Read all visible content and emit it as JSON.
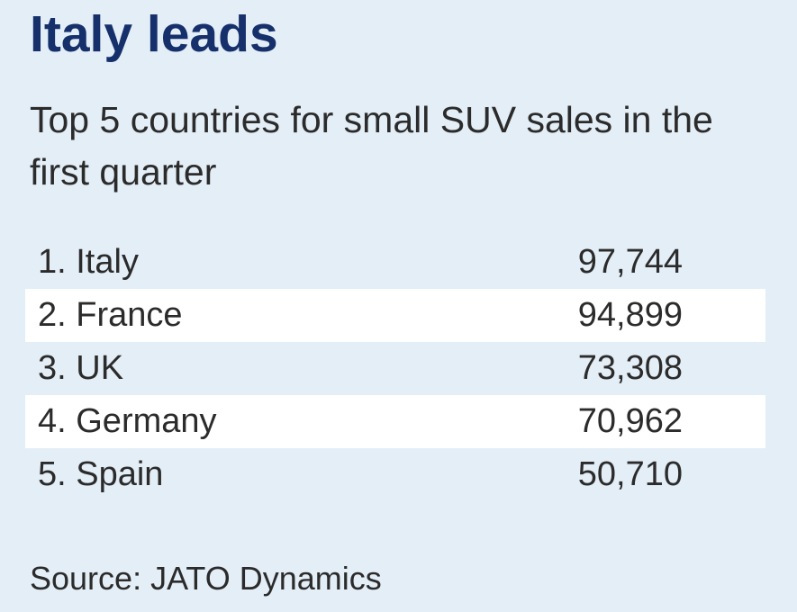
{
  "header": {
    "title": "Italy leads",
    "subtitle": "Top 5 countries for small SUV sales in the first quarter"
  },
  "chart_data": {
    "type": "table",
    "title": "Italy leads",
    "subtitle": "Top 5 countries for small SUV sales in the first quarter",
    "rows": [
      {
        "label": "1. Italy",
        "value": "97,744",
        "shaded": false
      },
      {
        "label": "2. France",
        "value": "94,899",
        "shaded": true
      },
      {
        "label": "3. UK",
        "value": "73,308",
        "shaded": false
      },
      {
        "label": "4. Germany",
        "value": "70,962",
        "shaded": true
      },
      {
        "label": "5. Spain",
        "value": "50,710",
        "shaded": false
      }
    ]
  },
  "footer": {
    "source": "Source: JATO Dynamics"
  },
  "colors": {
    "background": "#e4eef7",
    "title": "#16306b",
    "text": "#2b2b2b",
    "row_highlight": "#ffffff"
  }
}
